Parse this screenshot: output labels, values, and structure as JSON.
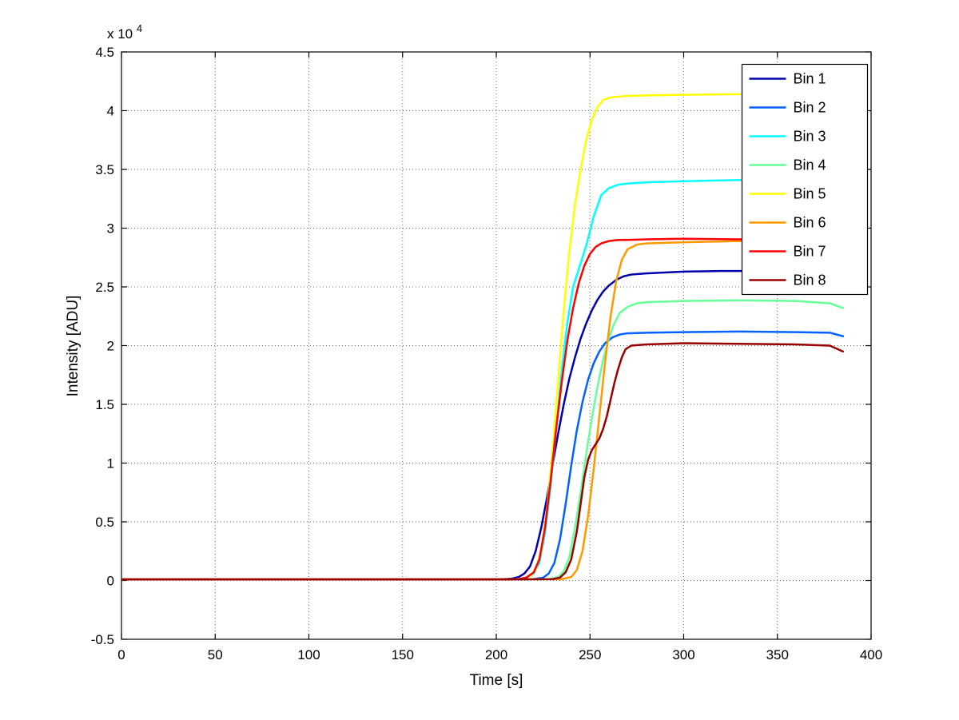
{
  "figure": {
    "background": "#ffffff",
    "axis_color": "#000000",
    "grid_color": "#666666",
    "line_width": 2.5
  },
  "chart_data": {
    "type": "line",
    "title": "",
    "xlabel": "Time [s]",
    "ylabel": "Intensity [ADU]",
    "scale_label": {
      "prefix": "x 10",
      "exponent": "4"
    },
    "xlim": [
      0,
      400
    ],
    "ylim": [
      -5000,
      45000
    ],
    "xticks": [
      0,
      50,
      100,
      150,
      200,
      250,
      300,
      350,
      400
    ],
    "xtick_labels": [
      "0",
      "50",
      "100",
      "150",
      "200",
      "250",
      "300",
      "350",
      "400"
    ],
    "yticks": [
      -5000,
      0,
      5000,
      10000,
      15000,
      20000,
      25000,
      30000,
      35000,
      40000,
      45000
    ],
    "ytick_labels": [
      "-0.5",
      "0",
      "0.5",
      "1",
      "1.5",
      "2",
      "2.5",
      "3",
      "3.5",
      "4",
      "4.5"
    ],
    "grid": true,
    "grid_style": "dotted",
    "legend_position": "northeast",
    "series": [
      {
        "name": "Bin 1",
        "color": "#0000AF",
        "points": [
          [
            0,
            100
          ],
          [
            50,
            100
          ],
          [
            100,
            100
          ],
          [
            150,
            100
          ],
          [
            200,
            100
          ],
          [
            208,
            150
          ],
          [
            212,
            300
          ],
          [
            215,
            600
          ],
          [
            218,
            1200
          ],
          [
            221,
            2500
          ],
          [
            224,
            4500
          ],
          [
            227,
            7000
          ],
          [
            230,
            9800
          ],
          [
            233,
            12500
          ],
          [
            236,
            15000
          ],
          [
            239,
            17200
          ],
          [
            242,
            19000
          ],
          [
            245,
            20600
          ],
          [
            248,
            21900
          ],
          [
            251,
            23000
          ],
          [
            254,
            23900
          ],
          [
            257,
            24600
          ],
          [
            260,
            25100
          ],
          [
            264,
            25600
          ],
          [
            268,
            25900
          ],
          [
            272,
            26050
          ],
          [
            280,
            26150
          ],
          [
            300,
            26300
          ],
          [
            320,
            26350
          ],
          [
            335,
            26350
          ]
        ]
      },
      {
        "name": "Bin 2",
        "color": "#0062FF",
        "points": [
          [
            0,
            100
          ],
          [
            50,
            100
          ],
          [
            100,
            100
          ],
          [
            150,
            100
          ],
          [
            200,
            100
          ],
          [
            220,
            120
          ],
          [
            225,
            250
          ],
          [
            228,
            600
          ],
          [
            231,
            1500
          ],
          [
            234,
            3500
          ],
          [
            237,
            6500
          ],
          [
            240,
            9800
          ],
          [
            243,
            12800
          ],
          [
            246,
            15200
          ],
          [
            249,
            17100
          ],
          [
            252,
            18500
          ],
          [
            255,
            19500
          ],
          [
            258,
            20200
          ],
          [
            262,
            20700
          ],
          [
            266,
            20950
          ],
          [
            270,
            21050
          ],
          [
            280,
            21100
          ],
          [
            300,
            21150
          ],
          [
            330,
            21200
          ],
          [
            360,
            21150
          ],
          [
            378,
            21100
          ],
          [
            385,
            20800
          ]
        ]
      },
      {
        "name": "Bin 3",
        "color": "#00FFFF",
        "points": [
          [
            0,
            100
          ],
          [
            50,
            100
          ],
          [
            100,
            100
          ],
          [
            150,
            100
          ],
          [
            200,
            100
          ],
          [
            212,
            120
          ],
          [
            216,
            250
          ],
          [
            220,
            600
          ],
          [
            223,
            1500
          ],
          [
            226,
            4000
          ],
          [
            229,
            8000
          ],
          [
            232,
            13000
          ],
          [
            235,
            18000
          ],
          [
            238,
            22000
          ],
          [
            241,
            25000
          ],
          [
            244,
            26500
          ],
          [
            248,
            28500
          ],
          [
            252,
            31000
          ],
          [
            256,
            32800
          ],
          [
            260,
            33400
          ],
          [
            265,
            33700
          ],
          [
            270,
            33800
          ],
          [
            280,
            33900
          ],
          [
            300,
            34000
          ],
          [
            330,
            34100
          ],
          [
            360,
            34100
          ],
          [
            385,
            34000
          ]
        ]
      },
      {
        "name": "Bin 4",
        "color": "#66FF99",
        "points": [
          [
            0,
            100
          ],
          [
            50,
            100
          ],
          [
            100,
            100
          ],
          [
            150,
            100
          ],
          [
            200,
            100
          ],
          [
            228,
            120
          ],
          [
            233,
            300
          ],
          [
            236,
            800
          ],
          [
            239,
            2000
          ],
          [
            242,
            4500
          ],
          [
            245,
            7500
          ],
          [
            248,
            10800
          ],
          [
            251,
            13800
          ],
          [
            254,
            16500
          ],
          [
            257,
            18800
          ],
          [
            260,
            20600
          ],
          [
            263,
            21900
          ],
          [
            266,
            22800
          ],
          [
            270,
            23300
          ],
          [
            275,
            23600
          ],
          [
            280,
            23700
          ],
          [
            300,
            23800
          ],
          [
            330,
            23850
          ],
          [
            360,
            23800
          ],
          [
            378,
            23600
          ],
          [
            385,
            23200
          ]
        ]
      },
      {
        "name": "Bin 5",
        "color": "#FFFF00",
        "points": [
          [
            0,
            100
          ],
          [
            50,
            100
          ],
          [
            100,
            100
          ],
          [
            150,
            100
          ],
          [
            200,
            100
          ],
          [
            210,
            120
          ],
          [
            215,
            200
          ],
          [
            218,
            400
          ],
          [
            221,
            900
          ],
          [
            224,
            2500
          ],
          [
            227,
            6000
          ],
          [
            230,
            11000
          ],
          [
            233,
            17000
          ],
          [
            236,
            23000
          ],
          [
            239,
            28000
          ],
          [
            242,
            32000
          ],
          [
            245,
            35000
          ],
          [
            248,
            37500
          ],
          [
            251,
            39200
          ],
          [
            254,
            40300
          ],
          [
            257,
            40900
          ],
          [
            260,
            41100
          ],
          [
            265,
            41200
          ],
          [
            270,
            41250
          ],
          [
            280,
            41300
          ],
          [
            300,
            41350
          ],
          [
            330,
            41400
          ],
          [
            360,
            41450
          ],
          [
            385,
            41400
          ]
        ]
      },
      {
        "name": "Bin 6",
        "color": "#FF9900",
        "points": [
          [
            0,
            100
          ],
          [
            50,
            100
          ],
          [
            100,
            100
          ],
          [
            150,
            100
          ],
          [
            200,
            100
          ],
          [
            235,
            120
          ],
          [
            240,
            300
          ],
          [
            243,
            900
          ],
          [
            246,
            2500
          ],
          [
            249,
            5500
          ],
          [
            252,
            9500
          ],
          [
            255,
            14000
          ],
          [
            258,
            18500
          ],
          [
            261,
            22500
          ],
          [
            264,
            25500
          ],
          [
            267,
            27300
          ],
          [
            270,
            28200
          ],
          [
            275,
            28600
          ],
          [
            280,
            28700
          ],
          [
            300,
            28800
          ],
          [
            330,
            28900
          ],
          [
            360,
            28850
          ],
          [
            385,
            28800
          ]
        ]
      },
      {
        "name": "Bin 7",
        "color": "#FF0000",
        "points": [
          [
            0,
            100
          ],
          [
            50,
            100
          ],
          [
            100,
            100
          ],
          [
            150,
            100
          ],
          [
            200,
            100
          ],
          [
            212,
            120
          ],
          [
            216,
            250
          ],
          [
            220,
            700
          ],
          [
            223,
            1800
          ],
          [
            226,
            4500
          ],
          [
            229,
            8500
          ],
          [
            232,
            13000
          ],
          [
            235,
            17000
          ],
          [
            238,
            20500
          ],
          [
            241,
            23200
          ],
          [
            244,
            25300
          ],
          [
            247,
            26800
          ],
          [
            250,
            27800
          ],
          [
            253,
            28400
          ],
          [
            256,
            28700
          ],
          [
            260,
            28900
          ],
          [
            265,
            29000
          ],
          [
            270,
            29000
          ],
          [
            280,
            29050
          ],
          [
            300,
            29100
          ],
          [
            330,
            29050
          ],
          [
            360,
            29000
          ],
          [
            380,
            28900
          ]
        ]
      },
      {
        "name": "Bin 8",
        "color": "#990000",
        "points": [
          [
            0,
            100
          ],
          [
            50,
            100
          ],
          [
            100,
            100
          ],
          [
            150,
            100
          ],
          [
            200,
            100
          ],
          [
            230,
            120
          ],
          [
            234,
            250
          ],
          [
            237,
            700
          ],
          [
            240,
            1800
          ],
          [
            243,
            4200
          ],
          [
            245,
            6500
          ],
          [
            247,
            8800
          ],
          [
            249,
            10300
          ],
          [
            251,
            11100
          ],
          [
            253,
            11600
          ],
          [
            255,
            12100
          ],
          [
            257,
            12900
          ],
          [
            259,
            14000
          ],
          [
            261,
            15400
          ],
          [
            263,
            16800
          ],
          [
            265,
            18000
          ],
          [
            267,
            19000
          ],
          [
            269,
            19700
          ],
          [
            272,
            20000
          ],
          [
            280,
            20100
          ],
          [
            300,
            20200
          ],
          [
            330,
            20150
          ],
          [
            360,
            20100
          ],
          [
            378,
            20000
          ],
          [
            385,
            19500
          ]
        ]
      }
    ]
  }
}
